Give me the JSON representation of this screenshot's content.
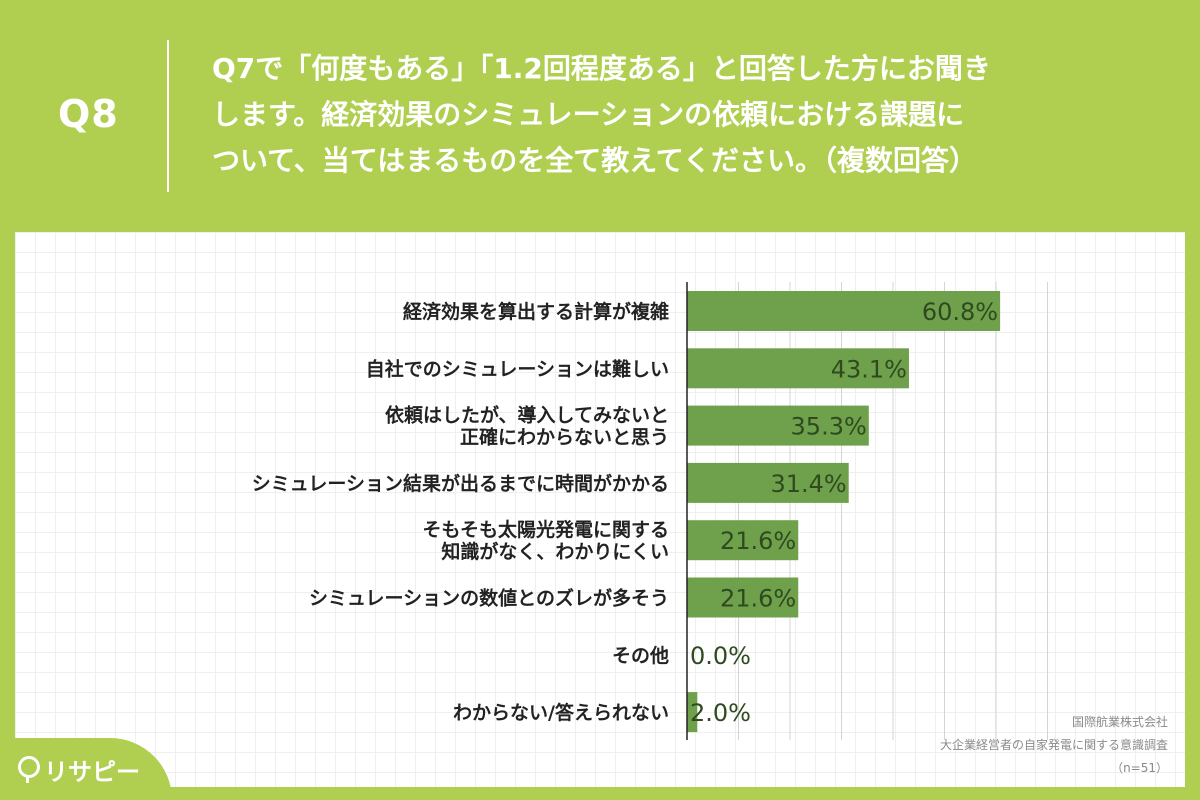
{
  "header": {
    "question_number": "Q8",
    "question_lines": [
      "Q7で「何度もある」「1.2回程度ある」と回答した方にお聞き",
      "します。経済効果のシミュレーションの依頼における課題に",
      "ついて、当てはまるものを全て教えてください。（複数回答）"
    ]
  },
  "credit": {
    "company": "国際航業株式会社",
    "survey": "大企業経営者の自家発電に関する意識調査",
    "sample": "（n=51）"
  },
  "logo": {
    "text": "リサピー",
    "icon": "pin-icon"
  },
  "colors": {
    "background": "#b0ce50",
    "bar": "#6fa14d",
    "bar_label": "#2f4a1e",
    "category_label": "#222222"
  },
  "chart_data": {
    "type": "bar",
    "orientation": "horizontal",
    "categories": [
      [
        "経済効果を算出する計算が複雑"
      ],
      [
        "自社でのシミュレーションは難しい"
      ],
      [
        "依頼はしたが、導入してみないと",
        "正確にわからないと思う"
      ],
      [
        "シミュレーション結果が出るまでに時間がかかる"
      ],
      [
        "そもそも太陽光発電に関する",
        "知識がなく、わかりにくい"
      ],
      [
        "シミュレーションの数値とのズレが多そう"
      ],
      [
        "その他"
      ],
      [
        "わからない/答えられない"
      ]
    ],
    "values": [
      60.8,
      43.1,
      35.3,
      31.4,
      21.6,
      21.6,
      0.0,
      2.0
    ],
    "value_labels": [
      "60.8%",
      "43.1%",
      "35.3%",
      "31.4%",
      "21.6%",
      "21.6%",
      "0.0%",
      "2.0%"
    ],
    "xlim": [
      0,
      70
    ],
    "gridlines": [
      10,
      20,
      30,
      40,
      50,
      60,
      70
    ],
    "grid": true,
    "legend": "none"
  }
}
